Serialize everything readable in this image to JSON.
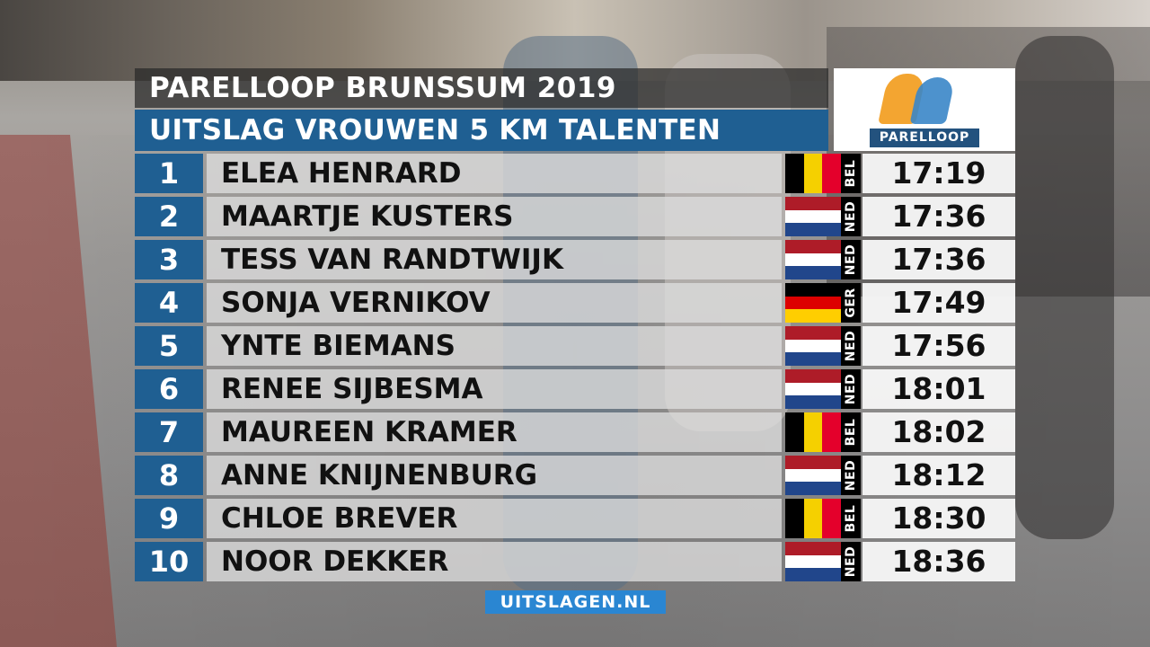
{
  "header": {
    "title": "PARELLOOP BRUNSSUM 2019",
    "subtitle": "UITSLAG VROUWEN 5 KM TALENTEN"
  },
  "logo": {
    "text": "PARELLOOP"
  },
  "results": [
    {
      "rank": "1",
      "name": "ELEA HENRARD",
      "country": "BEL",
      "time": "17:19"
    },
    {
      "rank": "2",
      "name": "MAARTJE KUSTERS",
      "country": "NED",
      "time": "17:36"
    },
    {
      "rank": "3",
      "name": "TESS VAN RANDTWIJK",
      "country": "NED",
      "time": "17:36"
    },
    {
      "rank": "4",
      "name": "SONJA VERNIKOV",
      "country": "GER",
      "time": "17:49"
    },
    {
      "rank": "5",
      "name": "YNTE BIEMANS",
      "country": "NED",
      "time": "17:56"
    },
    {
      "rank": "6",
      "name": "RENEE SIJBESMA",
      "country": "NED",
      "time": "18:01"
    },
    {
      "rank": "7",
      "name": "MAUREEN KRAMER",
      "country": "BEL",
      "time": "18:02"
    },
    {
      "rank": "8",
      "name": "ANNE KNIJNENBURG",
      "country": "NED",
      "time": "18:12"
    },
    {
      "rank": "9",
      "name": "CHLOE BREVER",
      "country": "BEL",
      "time": "18:30"
    },
    {
      "rank": "10",
      "name": "NOOR DEKKER",
      "country": "NED",
      "time": "18:36"
    }
  ],
  "flag_colors": {
    "BEL": [
      "#000000",
      "#f5d000",
      "#e4002b"
    ],
    "NED": [
      "#ae1c28",
      "#ffffff",
      "#21468b"
    ],
    "GER": [
      "#000000",
      "#dd0000",
      "#ffce00"
    ]
  },
  "footer": {
    "text": "UITSLAGEN.NL"
  },
  "colors": {
    "accent": "#1f5f92",
    "footer": "#2a86d2"
  }
}
